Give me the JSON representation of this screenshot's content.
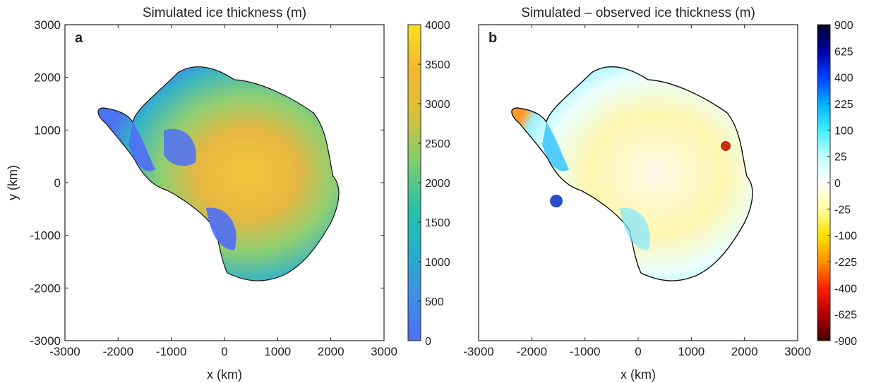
{
  "chart_data": [
    {
      "type": "heatmap",
      "panel_label": "a",
      "title": "Simulated ice thickness (m)",
      "xlabel": "x (km)",
      "ylabel": "y (km)",
      "xlim": [
        -3000,
        3000
      ],
      "ylim": [
        -3000,
        3000
      ],
      "xticks": [
        "-3000",
        "-2000",
        "-1000",
        "0",
        "1000",
        "2000",
        "3000"
      ],
      "yticks": [
        "3000",
        "2000",
        "1000",
        "0",
        "-1000",
        "-2000",
        "-3000"
      ],
      "colorbar": {
        "min": 0,
        "max": 4000,
        "ticks": [
          "4000",
          "3500",
          "3000",
          "2500",
          "2000",
          "1500",
          "1000",
          "500",
          "0"
        ],
        "colors": [
          "#4f6ef7",
          "#3f8fe4",
          "#23b0c9",
          "#2cc3a3",
          "#7fce6e",
          "#d8c13a",
          "#f3b72e",
          "#f7e020"
        ]
      }
    },
    {
      "type": "heatmap",
      "panel_label": "b",
      "title": "Simulated – observed ice thickness (m)",
      "xlabel": "x (km)",
      "ylabel": "",
      "xlim": [
        -3000,
        3000
      ],
      "ylim": [
        -3000,
        3000
      ],
      "xticks": [
        "-3000",
        "-2000",
        "-1000",
        "0",
        "1000",
        "2000",
        "3000"
      ],
      "yticks": [],
      "colorbar": {
        "scale": "nonlinear",
        "ticks": [
          "900",
          "625",
          "400",
          "225",
          "100",
          "25",
          "0",
          "-25",
          "-100",
          "-225",
          "-400",
          "-625",
          "-900"
        ],
        "colors": [
          "#00002a",
          "#0000a0",
          "#0040ff",
          "#00b0ff",
          "#40f0ff",
          "#c0ffff",
          "#ffffff",
          "#ffffa0",
          "#ffe000",
          "#ff9000",
          "#ff2000",
          "#b00000",
          "#400000"
        ]
      }
    }
  ]
}
